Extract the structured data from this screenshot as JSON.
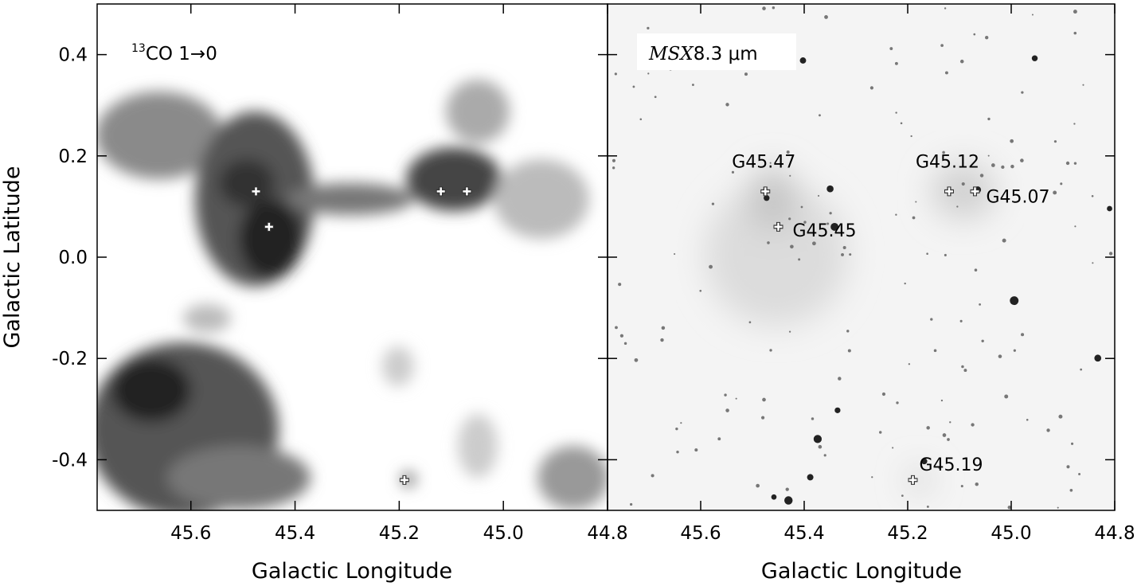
{
  "chart_data": [
    {
      "type": "image",
      "title_sup": "13",
      "title": "CO 1→0",
      "xlabel": "Galactic Longitude",
      "ylabel": "Galactic Latitude",
      "xlim": [
        45.78,
        44.8
      ],
      "ylim": [
        -0.5,
        0.5
      ],
      "xticks": [
        45.6,
        45.4,
        45.2,
        {
          "value": 45,
          "label": "45.0"
        },
        44.8
      ],
      "yticks": [
        0.4,
        0.2,
        {
          "value": 0,
          "label": "0.0"
        },
        -0.2,
        -0.4
      ],
      "markers": {
        "l": [
          45.475,
          45.45,
          45.12,
          45.07,
          45.19
        ],
        "b": [
          0.13,
          0.06,
          0.13,
          0.13,
          -0.44
        ]
      }
    },
    {
      "type": "image",
      "title_italic": "MSX",
      "title": "8.3 μm",
      "xlabel": "Galactic Longitude",
      "xlim": [
        45.78,
        44.8
      ],
      "ylim": [
        -0.5,
        0.5
      ],
      "xticks": [
        45.6,
        45.4,
        45.2,
        {
          "value": 45,
          "label": "45.0"
        },
        44.8
      ],
      "yticks": [
        0.4,
        0.2,
        {
          "value": 0,
          "label": "0.0"
        },
        -0.2,
        -0.4
      ],
      "markers": {
        "names": [
          "G45.47",
          "G45.45",
          "G45.12",
          "G45.07",
          "G45.19"
        ],
        "l": [
          45.475,
          45.45,
          45.12,
          45.07,
          45.19
        ],
        "b": [
          0.13,
          0.06,
          0.13,
          0.13,
          -0.44
        ]
      }
    }
  ]
}
